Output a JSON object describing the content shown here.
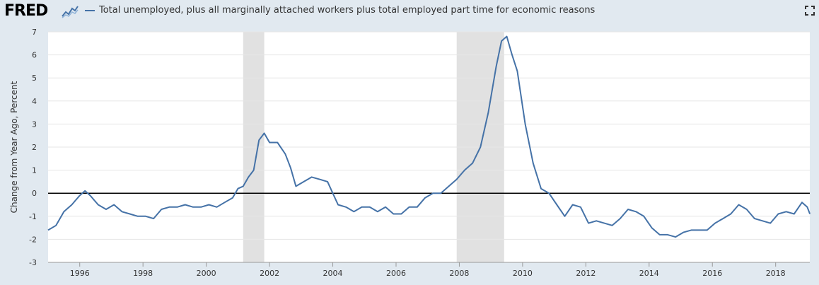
{
  "header": {
    "logo_text": "FRED",
    "legend_label": "Total unemployed, plus all marginally attached workers plus total employed part time for economic reasons"
  },
  "icons": {
    "logo_graph": "line-chart-icon",
    "expand": "fullscreen-icon"
  },
  "chart_data": {
    "type": "line",
    "title": "",
    "xlabel": "",
    "ylabel": "Change from Year Ago, Percent",
    "ylim": [
      -3,
      7
    ],
    "yticks": [
      "7",
      "6",
      "5",
      "4",
      "3",
      "2",
      "1",
      "0",
      "-1",
      "-2",
      "-3"
    ],
    "xticks": [
      "1996",
      "1998",
      "2000",
      "2002",
      "2004",
      "2006",
      "2008",
      "2010",
      "2012",
      "2014",
      "2016",
      "2018"
    ],
    "grid": "horizontal",
    "zero_line": true,
    "colors": {
      "series": "#4572a7",
      "recession": "#e1e1e1",
      "background": "#e1e9f0",
      "plot": "#ffffff"
    },
    "recessions": [
      [
        "2001-03",
        "2001-11"
      ],
      [
        "2007-12",
        "2009-06"
      ]
    ],
    "series": [
      {
        "name": "Total unemployed, plus all marginally attached workers plus total employed part time for economic reasons",
        "points": [
          [
            "1995-01",
            -1.6
          ],
          [
            "1995-04",
            -1.4
          ],
          [
            "1995-07",
            -0.8
          ],
          [
            "1995-10",
            -0.5
          ],
          [
            "1996-01",
            -0.1
          ],
          [
            "1996-03",
            0.1
          ],
          [
            "1996-05",
            -0.1
          ],
          [
            "1996-08",
            -0.5
          ],
          [
            "1996-11",
            -0.7
          ],
          [
            "1997-02",
            -0.5
          ],
          [
            "1997-05",
            -0.8
          ],
          [
            "1997-08",
            -0.9
          ],
          [
            "1997-11",
            -1.0
          ],
          [
            "1998-02",
            -1.0
          ],
          [
            "1998-05",
            -1.1
          ],
          [
            "1998-08",
            -0.7
          ],
          [
            "1998-11",
            -0.6
          ],
          [
            "1999-02",
            -0.6
          ],
          [
            "1999-05",
            -0.5
          ],
          [
            "1999-08",
            -0.6
          ],
          [
            "1999-11",
            -0.6
          ],
          [
            "2000-02",
            -0.5
          ],
          [
            "2000-05",
            -0.6
          ],
          [
            "2000-08",
            -0.4
          ],
          [
            "2000-11",
            -0.2
          ],
          [
            "2001-01",
            0.2
          ],
          [
            "2001-03",
            0.3
          ],
          [
            "2001-05",
            0.7
          ],
          [
            "2001-07",
            1.0
          ],
          [
            "2001-09",
            2.3
          ],
          [
            "2001-11",
            2.6
          ],
          [
            "2002-01",
            2.2
          ],
          [
            "2002-04",
            2.2
          ],
          [
            "2002-07",
            1.7
          ],
          [
            "2002-09",
            1.1
          ],
          [
            "2002-11",
            0.3
          ],
          [
            "2003-02",
            0.5
          ],
          [
            "2003-05",
            0.7
          ],
          [
            "2003-08",
            0.6
          ],
          [
            "2003-11",
            0.5
          ],
          [
            "2004-01",
            0.0
          ],
          [
            "2004-03",
            -0.5
          ],
          [
            "2004-06",
            -0.6
          ],
          [
            "2004-09",
            -0.8
          ],
          [
            "2004-12",
            -0.6
          ],
          [
            "2005-03",
            -0.6
          ],
          [
            "2005-06",
            -0.8
          ],
          [
            "2005-09",
            -0.6
          ],
          [
            "2005-12",
            -0.9
          ],
          [
            "2006-03",
            -0.9
          ],
          [
            "2006-06",
            -0.6
          ],
          [
            "2006-09",
            -0.6
          ],
          [
            "2006-12",
            -0.2
          ],
          [
            "2007-03",
            0.0
          ],
          [
            "2007-06",
            0.0
          ],
          [
            "2007-09",
            0.3
          ],
          [
            "2007-12",
            0.6
          ],
          [
            "2008-03",
            1.0
          ],
          [
            "2008-06",
            1.3
          ],
          [
            "2008-09",
            2.0
          ],
          [
            "2008-12",
            3.5
          ],
          [
            "2009-03",
            5.5
          ],
          [
            "2009-05",
            6.6
          ],
          [
            "2009-07",
            6.8
          ],
          [
            "2009-09",
            6.0
          ],
          [
            "2009-11",
            5.3
          ],
          [
            "2010-02",
            3.0
          ],
          [
            "2010-05",
            1.3
          ],
          [
            "2010-08",
            0.2
          ],
          [
            "2010-11",
            0.0
          ],
          [
            "2011-02",
            -0.5
          ],
          [
            "2011-05",
            -1.0
          ],
          [
            "2011-08",
            -0.5
          ],
          [
            "2011-11",
            -0.6
          ],
          [
            "2012-02",
            -1.3
          ],
          [
            "2012-05",
            -1.2
          ],
          [
            "2012-08",
            -1.3
          ],
          [
            "2012-11",
            -1.4
          ],
          [
            "2013-02",
            -1.1
          ],
          [
            "2013-05",
            -0.7
          ],
          [
            "2013-08",
            -0.8
          ],
          [
            "2013-11",
            -1.0
          ],
          [
            "2014-02",
            -1.5
          ],
          [
            "2014-05",
            -1.8
          ],
          [
            "2014-08",
            -1.8
          ],
          [
            "2014-11",
            -1.9
          ],
          [
            "2015-02",
            -1.7
          ],
          [
            "2015-05",
            -1.6
          ],
          [
            "2015-08",
            -1.6
          ],
          [
            "2015-11",
            -1.6
          ],
          [
            "2016-02",
            -1.3
          ],
          [
            "2016-05",
            -1.1
          ],
          [
            "2016-08",
            -0.9
          ],
          [
            "2016-11",
            -0.5
          ],
          [
            "2017-02",
            -0.7
          ],
          [
            "2017-05",
            -1.1
          ],
          [
            "2017-08",
            -1.2
          ],
          [
            "2017-11",
            -1.3
          ],
          [
            "2018-02",
            -0.9
          ],
          [
            "2018-05",
            -0.8
          ],
          [
            "2018-08",
            -0.9
          ],
          [
            "2018-11",
            -0.4
          ],
          [
            "2019-01",
            -0.6
          ],
          [
            "2019-02",
            -0.9
          ]
        ]
      }
    ]
  }
}
